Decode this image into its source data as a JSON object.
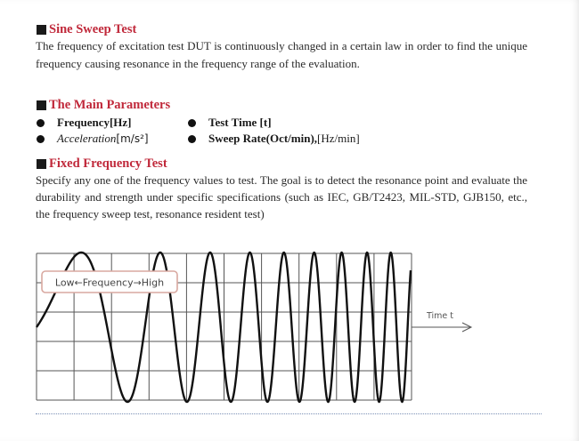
{
  "sections": {
    "sine_sweep": {
      "title": "Sine Sweep Test",
      "body": "The frequency of excitation test DUT is continuously changed in a certain law in order to find the unique frequency causing resonance in the frequency range of the evaluation."
    },
    "main_params": {
      "title": "The Main Parameters",
      "frequency_label": "Frequency[Hz]",
      "test_time_label": "Test Time [t]",
      "acceleration_label": "Acceleration",
      "acceleration_unit": "[m/s²]",
      "sweep_rate_label": "Sweep Rate(Oct/min),",
      "sweep_rate_unit": "[Hz/min]"
    },
    "fixed_freq": {
      "title": "Fixed Frequency Test",
      "body": "Specify any one of the frequency values to test. The goal is to detect the resonance point and evaluate the durability and strength under specific specifications (such as IEC, GB/T2423, MIL-STD, GJB150, etc., the frequency sweep test, resonance resident test)"
    }
  },
  "chart": {
    "legend_label": "Low←Frequency→High",
    "axis_label": "Time t",
    "accent_color": "#d9a8a0",
    "wave_color": "#111111",
    "grid_color": "#555555"
  }
}
